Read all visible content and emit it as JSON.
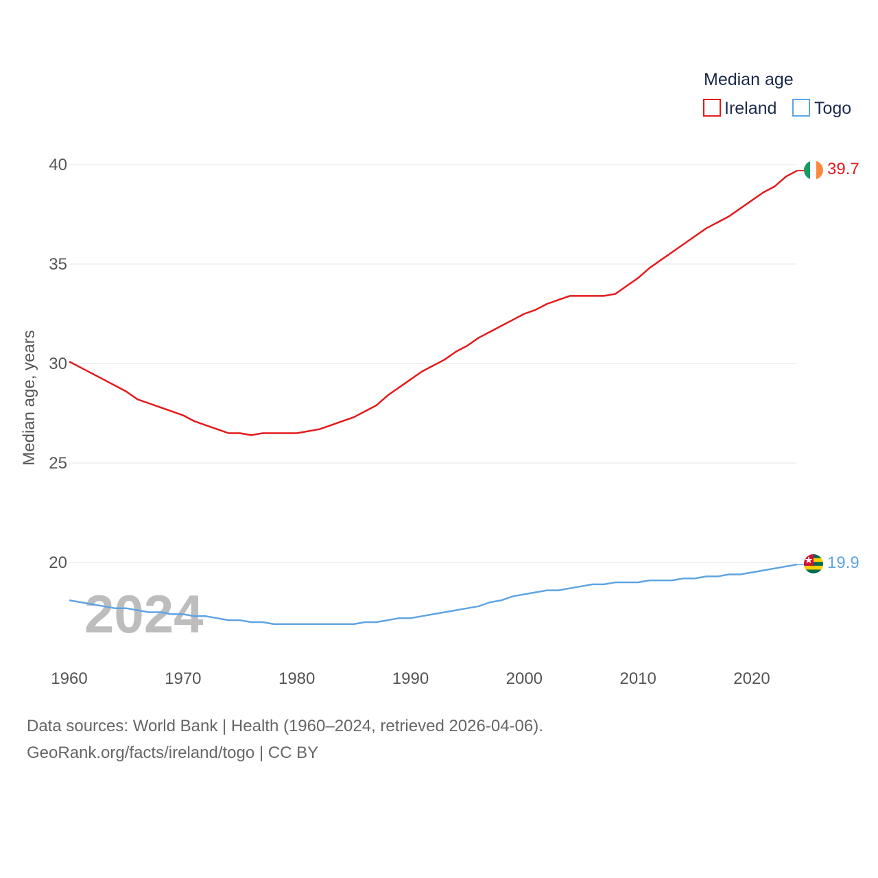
{
  "chart_data": {
    "type": "line",
    "title": "",
    "xlabel": "",
    "ylabel": "Median age, years",
    "xlim": [
      1960,
      2024
    ],
    "ylim": [
      16,
      40
    ],
    "y_ticks": [
      20,
      25,
      30,
      35,
      40
    ],
    "x_ticks": [
      1960,
      1970,
      1980,
      1990,
      2000,
      2010,
      2020
    ],
    "grid": true,
    "legend_title": "Median age",
    "legend_position": "top-right",
    "watermark_year": "2024",
    "series": [
      {
        "name": "Ireland",
        "color": "#e31a1c",
        "end_label": "39.7",
        "flag": "ireland-flag",
        "x": [
          1960,
          1961,
          1962,
          1963,
          1964,
          1965,
          1966,
          1967,
          1968,
          1969,
          1970,
          1971,
          1972,
          1973,
          1974,
          1975,
          1976,
          1977,
          1978,
          1979,
          1980,
          1981,
          1982,
          1983,
          1984,
          1985,
          1986,
          1987,
          1988,
          1989,
          1990,
          1991,
          1992,
          1993,
          1994,
          1995,
          1996,
          1997,
          1998,
          1999,
          2000,
          2001,
          2002,
          2003,
          2004,
          2005,
          2006,
          2007,
          2008,
          2009,
          2010,
          2011,
          2012,
          2013,
          2014,
          2015,
          2016,
          2017,
          2018,
          2019,
          2020,
          2021,
          2022,
          2023,
          2024
        ],
        "values": [
          30.1,
          29.8,
          29.5,
          29.2,
          28.9,
          28.6,
          28.2,
          28.0,
          27.8,
          27.6,
          27.4,
          27.1,
          26.9,
          26.7,
          26.5,
          26.5,
          26.4,
          26.5,
          26.5,
          26.5,
          26.5,
          26.6,
          26.7,
          26.9,
          27.1,
          27.3,
          27.6,
          27.9,
          28.4,
          28.8,
          29.2,
          29.6,
          29.9,
          30.2,
          30.6,
          30.9,
          31.3,
          31.6,
          31.9,
          32.2,
          32.5,
          32.7,
          33.0,
          33.2,
          33.4,
          33.4,
          33.4,
          33.4,
          33.5,
          33.9,
          34.3,
          34.8,
          35.2,
          35.6,
          36.0,
          36.4,
          36.8,
          37.1,
          37.4,
          37.8,
          38.2,
          38.6,
          38.9,
          39.4,
          39.7
        ]
      },
      {
        "name": "Togo",
        "color": "#5fa4e4",
        "end_label": "19.9",
        "flag": "togo-flag",
        "x": [
          1960,
          1961,
          1962,
          1963,
          1964,
          1965,
          1966,
          1967,
          1968,
          1969,
          1970,
          1971,
          1972,
          1973,
          1974,
          1975,
          1976,
          1977,
          1978,
          1979,
          1980,
          1981,
          1982,
          1983,
          1984,
          1985,
          1986,
          1987,
          1988,
          1989,
          1990,
          1991,
          1992,
          1993,
          1994,
          1995,
          1996,
          1997,
          1998,
          1999,
          2000,
          2001,
          2002,
          2003,
          2004,
          2005,
          2006,
          2007,
          2008,
          2009,
          2010,
          2011,
          2012,
          2013,
          2014,
          2015,
          2016,
          2017,
          2018,
          2019,
          2020,
          2021,
          2022,
          2023,
          2024
        ],
        "values": [
          18.1,
          18.0,
          17.9,
          17.8,
          17.7,
          17.7,
          17.6,
          17.5,
          17.5,
          17.4,
          17.4,
          17.3,
          17.3,
          17.2,
          17.1,
          17.1,
          17.0,
          17.0,
          16.9,
          16.9,
          16.9,
          16.9,
          16.9,
          16.9,
          16.9,
          16.9,
          17.0,
          17.0,
          17.1,
          17.2,
          17.2,
          17.3,
          17.4,
          17.5,
          17.6,
          17.7,
          17.8,
          18.0,
          18.1,
          18.3,
          18.4,
          18.5,
          18.6,
          18.6,
          18.7,
          18.8,
          18.9,
          18.9,
          19.0,
          19.0,
          19.0,
          19.1,
          19.1,
          19.1,
          19.2,
          19.2,
          19.3,
          19.3,
          19.4,
          19.4,
          19.5,
          19.6,
          19.7,
          19.8,
          19.9
        ]
      }
    ]
  },
  "footer": {
    "line1": "Data sources: World Bank | Health (1960–2024, retrieved 2026-04-06).",
    "line2": "GeoRank.org/facts/ireland/togo | CC BY"
  }
}
